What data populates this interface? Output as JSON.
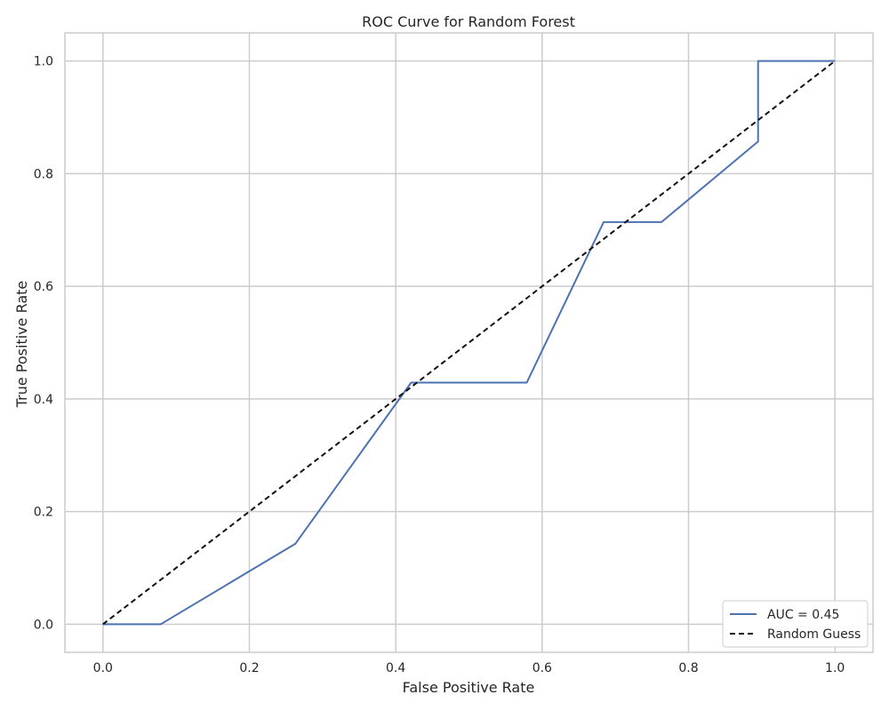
{
  "chart_data": {
    "type": "line",
    "title": "ROC Curve for Random Forest",
    "xlabel": "False Positive Rate",
    "ylabel": "True Positive Rate",
    "xlim": [
      -0.052,
      1.052
    ],
    "ylim": [
      -0.05,
      1.05
    ],
    "xticks": [
      "0.0",
      "0.2",
      "0.4",
      "0.6",
      "0.8",
      "1.0"
    ],
    "yticks": [
      "0.0",
      "0.2",
      "0.4",
      "0.6",
      "0.8",
      "1.0"
    ],
    "grid": true,
    "legend_position": "lower right",
    "series": [
      {
        "name": "AUC = 0.45",
        "color": "#4c72b0",
        "style": "solid",
        "x": [
          0.0,
          0.079,
          0.263,
          0.421,
          0.421,
          0.579,
          0.684,
          0.684,
          0.763,
          0.895,
          0.895,
          1.0
        ],
        "y": [
          0.0,
          0.0,
          0.143,
          0.429,
          0.429,
          0.429,
          0.714,
          0.714,
          0.714,
          0.857,
          1.0,
          1.0
        ]
      },
      {
        "name": "Random Guess",
        "color": "#111111",
        "style": "dashed",
        "x": [
          0.0,
          1.0
        ],
        "y": [
          0.0,
          1.0
        ]
      }
    ]
  }
}
